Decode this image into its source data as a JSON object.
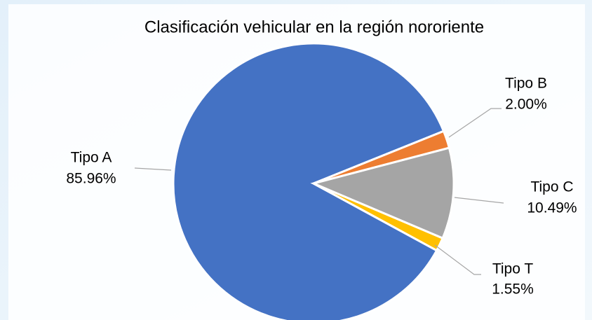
{
  "chart_data": {
    "type": "pie",
    "title": "Clasificación vehicular en la región nororiente",
    "categories": [
      "Tipo A",
      "Tipo B",
      "Tipo C",
      "Tipo T"
    ],
    "values": [
      85.96,
      2,
      10.49,
      1.55
    ],
    "value_labels": [
      "85.96%",
      "2.00%",
      "10.49%",
      "1.55%"
    ],
    "colors": [
      "#4472c4",
      "#ed7d31",
      "#a5a5a5",
      "#ffc000"
    ]
  }
}
